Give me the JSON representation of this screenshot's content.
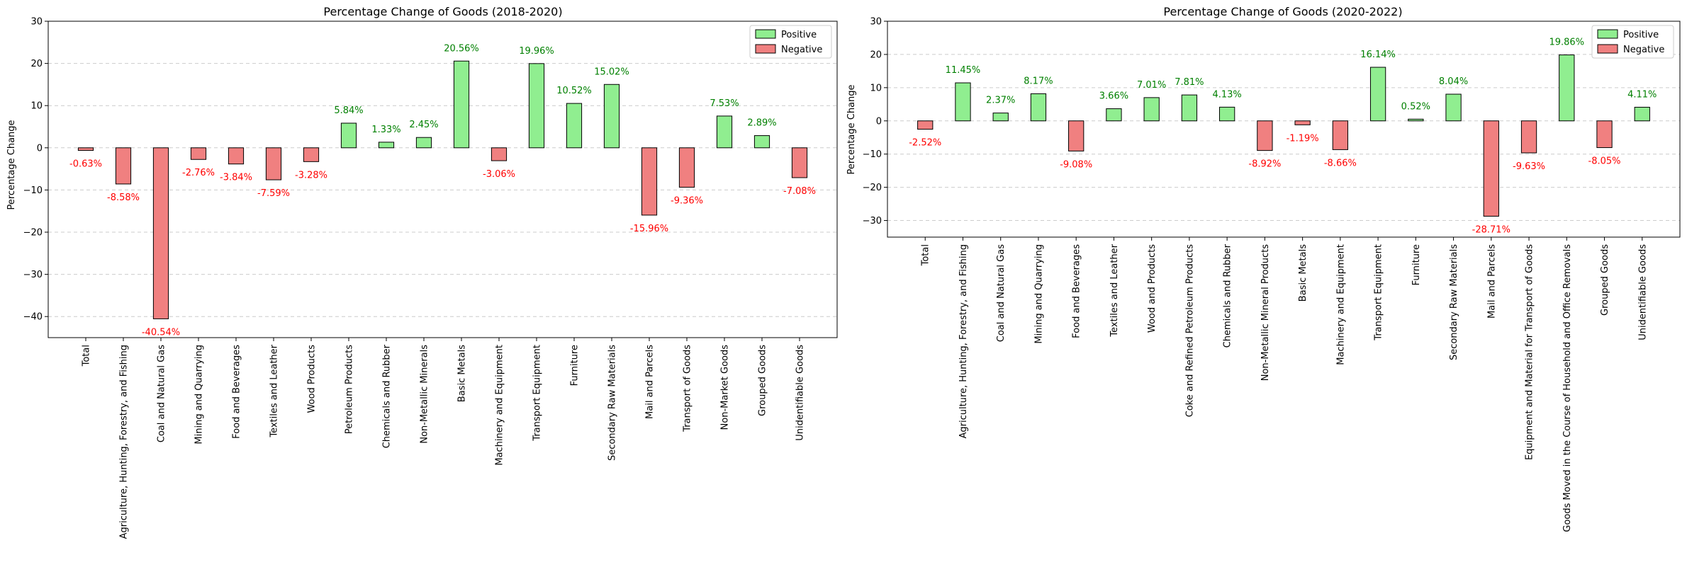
{
  "colors": {
    "positive": "#90ee90",
    "negative": "#f08080",
    "positive_text": "#008000",
    "negative_text": "#ff0000",
    "edge": "#000000",
    "grid": "#cccccc"
  },
  "chart_data": [
    {
      "type": "bar",
      "title": "Percentage Change of Goods (2018-2020)",
      "xlabel": "",
      "ylabel": "Percentage Change",
      "ylim": [
        -45,
        30
      ],
      "yticks": [
        -40,
        -30,
        -20,
        -10,
        0,
        10,
        20,
        30
      ],
      "tick_labels": [
        "−40",
        "−30",
        "−20",
        "−10",
        "0",
        "10",
        "20",
        "30"
      ],
      "grid": "y-dashed",
      "legend": {
        "placement": "top-right",
        "entries": [
          "Positive",
          "Negative"
        ]
      },
      "categories": [
        "Total",
        "Agriculture, Hunting, Forestry, and Fishing",
        "Coal and Natural Gas",
        "Mining and Quarrying",
        "Food and Beverages",
        "Textiles and Leather",
        "Wood Products",
        "Petroleum Products",
        "Chemicals and Rubber",
        "Non-Metallic Minerals",
        "Basic Metals",
        "Machinery and Equipment",
        "Transport Equipment",
        "Furniture",
        "Secondary Raw Materials",
        "Mail and Parcels",
        "Transport of Goods",
        "Non-Market Goods",
        "Grouped Goods",
        "Unidentifiable Goods"
      ],
      "values": [
        -0.63,
        -8.58,
        -40.54,
        -2.76,
        -3.84,
        -7.59,
        -3.28,
        5.84,
        1.33,
        2.45,
        20.56,
        -3.06,
        19.96,
        10.52,
        15.02,
        -15.96,
        -9.36,
        7.53,
        2.89,
        -7.08
      ],
      "data_labels": [
        "-0.63%",
        "-8.58%",
        "-40.54%",
        "-2.76%",
        "-3.84%",
        "-7.59%",
        "-3.28%",
        "5.84%",
        "1.33%",
        "2.45%",
        "20.56%",
        "-3.06%",
        "19.96%",
        "10.52%",
        "15.02%",
        "-15.96%",
        "-9.36%",
        "7.53%",
        "2.89%",
        "-7.08%"
      ]
    },
    {
      "type": "bar",
      "title": "Percentage Change of Goods (2020-2022)",
      "xlabel": "",
      "ylabel": "Percentage Change",
      "ylim": [
        -35,
        30
      ],
      "yticks": [
        -30,
        -20,
        -10,
        0,
        10,
        20,
        30
      ],
      "tick_labels": [
        "−30",
        "−20",
        "−10",
        "0",
        "10",
        "20",
        "30"
      ],
      "grid": "y-dashed",
      "legend": {
        "placement": "top-right",
        "entries": [
          "Positive",
          "Negative"
        ]
      },
      "categories": [
        "Total",
        "Agriculture, Hunting, Forestry, and Fishing",
        "Coal and Natural Gas",
        "Mining and Quarrying",
        "Food and Beverages",
        "Textiles and Leather",
        "Wood and Products",
        "Coke and Refined Petroleum Products",
        "Chemicals and Rubber",
        "Non-Metallic Mineral Products",
        "Basic Metals",
        "Machinery and Equipment",
        "Transport Equipment",
        "Furniture",
        "Secondary Raw Materials",
        "Mail and Parcels",
        "Equipment and Material for Transport of Goods",
        "Goods Moved in the Course of Household and Office Removals",
        "Grouped Goods",
        "Unidentifiable Goods"
      ],
      "values": [
        -2.52,
        11.45,
        2.37,
        8.17,
        -9.08,
        3.66,
        7.01,
        7.81,
        4.13,
        -8.92,
        -1.19,
        -8.66,
        16.14,
        0.52,
        8.04,
        -28.71,
        -9.63,
        19.86,
        -8.05,
        4.11
      ],
      "data_labels": [
        "-2.52%",
        "11.45%",
        "2.37%",
        "8.17%",
        "-9.08%",
        "3.66%",
        "7.01%",
        "7.81%",
        "4.13%",
        "-8.92%",
        "-1.19%",
        "-8.66%",
        "16.14%",
        "0.52%",
        "8.04%",
        "-28.71%",
        "-9.63%",
        "19.86%",
        "-8.05%",
        "4.11%"
      ]
    }
  ]
}
